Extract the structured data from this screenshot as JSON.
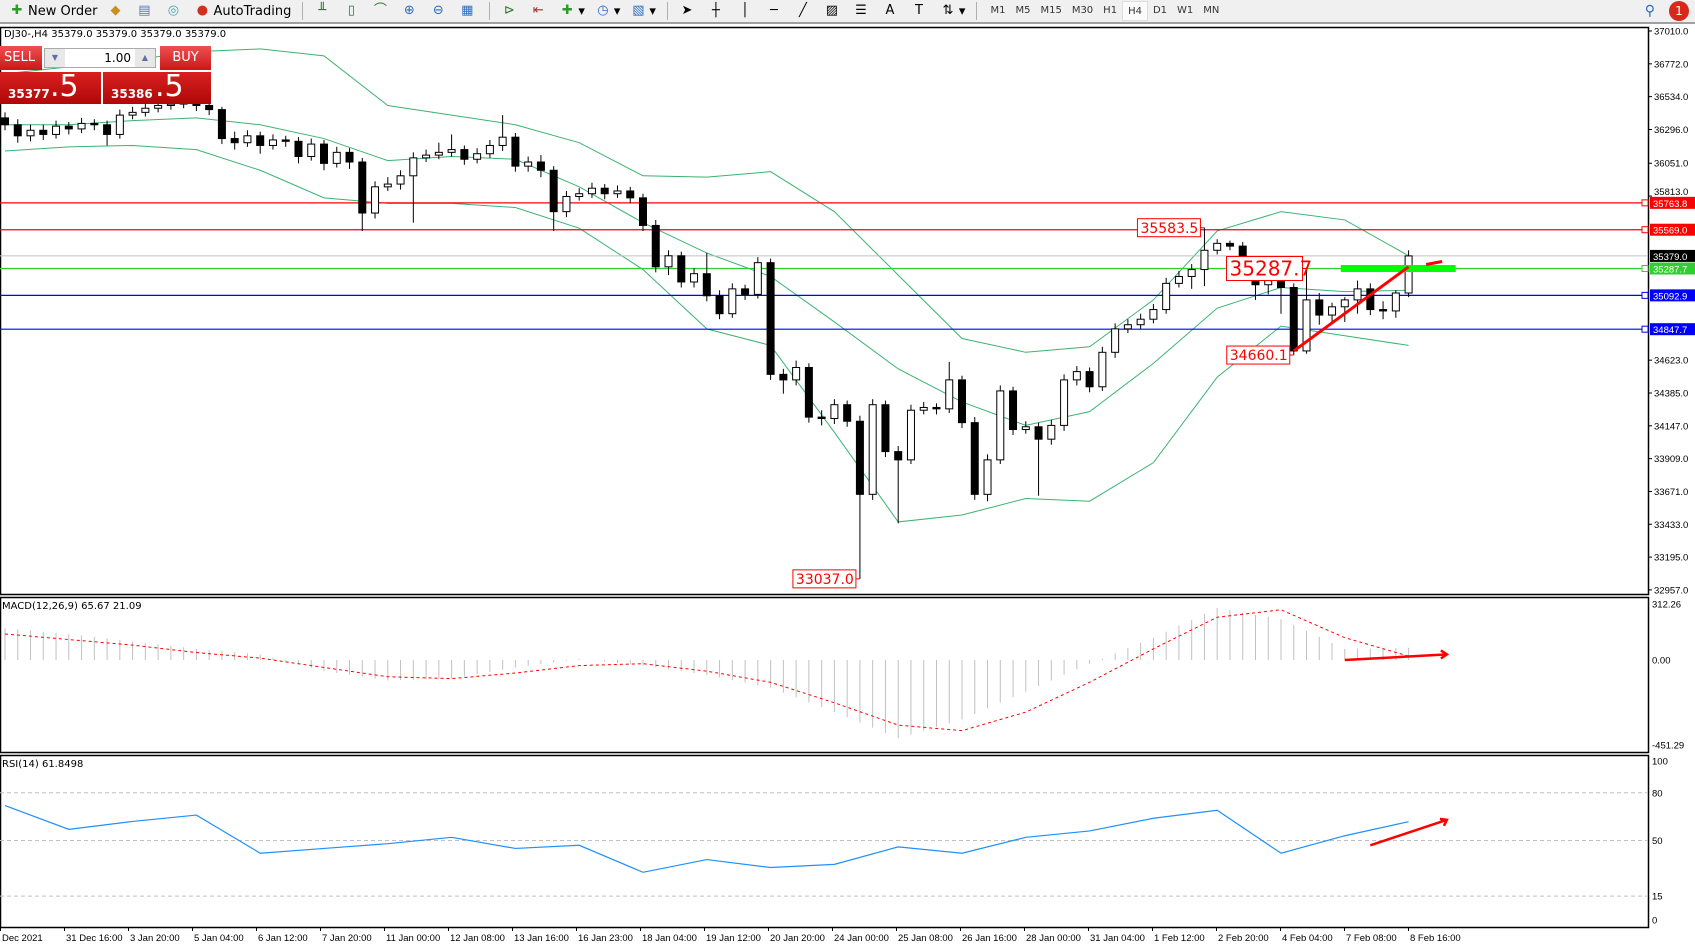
{
  "toolbar": {
    "items": [
      {
        "label": "New Order",
        "icon": "new-order-icon"
      },
      {
        "label": "",
        "icon": "metaeditor-icon"
      },
      {
        "label": "",
        "icon": "trading-terminal-icon"
      },
      {
        "label": "",
        "icon": "signals-icon"
      },
      {
        "label": "AutoTrading",
        "icon": "autotrading-icon"
      }
    ],
    "chart_tools": [
      "bar-chart-icon",
      "candlestick-icon",
      "line-chart-icon",
      "zoom-in-icon",
      "zoom-out-icon",
      "tile-windows-icon",
      "autoscroll-icon",
      "chart-shift-icon",
      "indicators-icon",
      "periods-icon",
      "templates-icon",
      "cursor-icon",
      "crosshair-icon",
      "vertical-line-icon",
      "horizontal-line-icon",
      "trendline-icon",
      "fibonacci-icon",
      "fibo-fan-icon",
      "text-icon",
      "text-label-icon",
      "arrows-icon"
    ],
    "timeframes": [
      "M1",
      "M5",
      "M15",
      "M30",
      "H1",
      "H4",
      "D1",
      "W1",
      "MN"
    ],
    "active_timeframe": "H4",
    "notification_count": "1"
  },
  "chart": {
    "symbol_line": "DJ30-,H4  35379.0 35379.0 35379.0 35379.0",
    "trade_panel": {
      "sell": "SELL",
      "buy": "BUY",
      "lot": "1.00",
      "sell_price_small": "35377",
      "sell_price_big": ".5",
      "buy_price_small": "35386",
      "buy_price_big": ".5"
    },
    "price_axis": [
      "37010.0",
      "36772.0",
      "36534.0",
      "36296.0",
      "36051.0",
      "35813.0",
      "34623.0",
      "34385.0",
      "34147.0",
      "33909.0",
      "33671.0",
      "33433.0",
      "33195.0",
      "32957.0"
    ],
    "price_range": [
      32957,
      37010
    ],
    "horizontal_lines": [
      {
        "price": 35763.8,
        "label": "35763.8",
        "color": "#ff0000"
      },
      {
        "price": 35569.0,
        "label": "35569.0",
        "color": "#ff0000"
      },
      {
        "price": 35287.7,
        "label": "35287.7",
        "color": "#32cd32"
      },
      {
        "price": 35092.9,
        "label": "35092.9",
        "color": "#0000ff"
      },
      {
        "price": 34847.7,
        "label": "34847.7",
        "color": "#0000ff"
      }
    ],
    "current_price": {
      "price": 35379.0,
      "label": "35379.0",
      "color": "#000000"
    },
    "annotations": [
      {
        "text": "35583.5",
        "bar": 94,
        "price": 35583.5,
        "size": "normal"
      },
      {
        "text": "35287.7",
        "bar": 102,
        "price": 35287.7,
        "size": "large"
      },
      {
        "text": "34660.1",
        "bar": 101,
        "price": 34660.1,
        "size": "normal"
      },
      {
        "text": "33037.0",
        "bar": 67,
        "price": 33037.0,
        "size": "normal"
      }
    ],
    "green_zone": {
      "price": 35287.7,
      "from_bar": 105,
      "to_bar": 114,
      "color": "#00ff00"
    },
    "trendline": {
      "from": [
        101,
        34690
      ],
      "to": [
        110,
        35300
      ],
      "color": "#ff0000"
    },
    "time_axis": [
      "Dec 2021",
      "31 Dec 16:00",
      "3 Jan 20:00",
      "5 Jan 04:00",
      "6 Jan 12:00",
      "7 Jan 20:00",
      "11 Jan 00:00",
      "12 Jan 08:00",
      "13 Jan 16:00",
      "16 Jan 23:00",
      "18 Jan 04:00",
      "19 Jan 12:00",
      "20 Jan 20:00",
      "24 Jan 00:00",
      "25 Jan 08:00",
      "26 Jan 16:00",
      "28 Jan 00:00",
      "31 Jan 04:00",
      "1 Feb 12:00",
      "2 Feb 20:00",
      "4 Feb 04:00",
      "7 Feb 08:00",
      "8 Feb 16:00"
    ]
  },
  "chart_data": {
    "type": "candlestick",
    "ohlc": [
      [
        36380,
        36420,
        36290,
        36330
      ],
      [
        36330,
        36370,
        36200,
        36250
      ],
      [
        36250,
        36330,
        36210,
        36290
      ],
      [
        36290,
        36330,
        36220,
        36260
      ],
      [
        36260,
        36360,
        36230,
        36320
      ],
      [
        36320,
        36350,
        36260,
        36300
      ],
      [
        36300,
        36380,
        36270,
        36340
      ],
      [
        36340,
        36370,
        36290,
        36330
      ],
      [
        36330,
        36360,
        36180,
        36260
      ],
      [
        36260,
        36440,
        36230,
        36400
      ],
      [
        36400,
        36460,
        36370,
        36420
      ],
      [
        36420,
        36490,
        36390,
        36450
      ],
      [
        36450,
        36510,
        36420,
        36470
      ],
      [
        36470,
        36520,
        36440,
        36480
      ],
      [
        36480,
        36540,
        36450,
        36500
      ],
      [
        36500,
        36530,
        36430,
        36470
      ],
      [
        36470,
        36490,
        36400,
        36440
      ],
      [
        36440,
        36460,
        36190,
        36230
      ],
      [
        36230,
        36280,
        36150,
        36200
      ],
      [
        36200,
        36290,
        36170,
        36250
      ],
      [
        36250,
        36280,
        36120,
        36180
      ],
      [
        36180,
        36260,
        36150,
        36220
      ],
      [
        36220,
        36250,
        36170,
        36210
      ],
      [
        36210,
        36240,
        36050,
        36100
      ],
      [
        36100,
        36230,
        36070,
        36190
      ],
      [
        36190,
        36220,
        36000,
        36050
      ],
      [
        36050,
        36170,
        36020,
        36130
      ],
      [
        36130,
        36160,
        36010,
        36060
      ],
      [
        36060,
        36090,
        35560,
        35690
      ],
      [
        35690,
        35920,
        35650,
        35880
      ],
      [
        35880,
        35950,
        35850,
        35900
      ],
      [
        35900,
        36000,
        35860,
        35960
      ],
      [
        35960,
        36130,
        35620,
        36090
      ],
      [
        36090,
        36150,
        36060,
        36110
      ],
      [
        36110,
        36200,
        36080,
        36130
      ],
      [
        36130,
        36260,
        36100,
        36150
      ],
      [
        36150,
        36180,
        36040,
        36080
      ],
      [
        36080,
        36160,
        36050,
        36120
      ],
      [
        36120,
        36220,
        36090,
        36180
      ],
      [
        36180,
        36400,
        36140,
        36240
      ],
      [
        36240,
        36270,
        35990,
        36030
      ],
      [
        36030,
        36100,
        35990,
        36060
      ],
      [
        36060,
        36110,
        35950,
        36000
      ],
      [
        36000,
        36030,
        35560,
        35700
      ],
      [
        35700,
        35850,
        35660,
        35810
      ],
      [
        35810,
        35870,
        35780,
        35830
      ],
      [
        35830,
        35910,
        35800,
        35870
      ],
      [
        35870,
        35900,
        35790,
        35830
      ],
      [
        35830,
        35890,
        35800,
        35850
      ],
      [
        35850,
        35880,
        35760,
        35800
      ],
      [
        35800,
        35830,
        35560,
        35600
      ],
      [
        35600,
        35640,
        35260,
        35300
      ],
      [
        35300,
        35420,
        35240,
        35380
      ],
      [
        35380,
        35410,
        35150,
        35190
      ],
      [
        35190,
        35290,
        35150,
        35250
      ],
      [
        35250,
        35400,
        35050,
        35090
      ],
      [
        35090,
        35130,
        34920,
        34960
      ],
      [
        34960,
        35180,
        34930,
        35140
      ],
      [
        35140,
        35170,
        35060,
        35100
      ],
      [
        35100,
        35370,
        35070,
        35330
      ],
      [
        35330,
        35360,
        34480,
        34520
      ],
      [
        34520,
        34560,
        34380,
        34480
      ],
      [
        34480,
        34620,
        34440,
        34570
      ],
      [
        34570,
        34600,
        34170,
        34210
      ],
      [
        34210,
        34260,
        34150,
        34200
      ],
      [
        34200,
        34340,
        34160,
        34300
      ],
      [
        34300,
        34330,
        34140,
        34180
      ],
      [
        34180,
        34220,
        33037,
        33650
      ],
      [
        33650,
        34340,
        33610,
        34300
      ],
      [
        34300,
        34330,
        33920,
        33960
      ],
      [
        33960,
        34000,
        33440,
        33900
      ],
      [
        33900,
        34300,
        33870,
        34260
      ],
      [
        34260,
        34320,
        34230,
        34280
      ],
      [
        34280,
        34310,
        34230,
        34270
      ],
      [
        34270,
        34610,
        34240,
        34480
      ],
      [
        34480,
        34510,
        34130,
        34170
      ],
      [
        34170,
        34210,
        33610,
        33650
      ],
      [
        33650,
        33940,
        33600,
        33900
      ],
      [
        33900,
        34440,
        33870,
        34400
      ],
      [
        34400,
        34430,
        34080,
        34120
      ],
      [
        34120,
        34180,
        34090,
        34140
      ],
      [
        34140,
        34170,
        33640,
        34050
      ],
      [
        34050,
        34190,
        34010,
        34150
      ],
      [
        34150,
        34520,
        34110,
        34480
      ],
      [
        34480,
        34580,
        34440,
        34540
      ],
      [
        34540,
        34570,
        34390,
        34430
      ],
      [
        34430,
        34720,
        34400,
        34680
      ],
      [
        34680,
        34890,
        34640,
        34850
      ],
      [
        34850,
        34920,
        34820,
        34880
      ],
      [
        34880,
        34960,
        34850,
        34920
      ],
      [
        34920,
        35030,
        34890,
        34990
      ],
      [
        34990,
        35220,
        34960,
        35180
      ],
      [
        35180,
        35270,
        35150,
        35230
      ],
      [
        35230,
        35320,
        35140,
        35280
      ],
      [
        35280,
        35583.5,
        35160,
        35420
      ],
      [
        35420,
        35500,
        35390,
        35470
      ],
      [
        35470,
        35490,
        35420,
        35450
      ],
      [
        35450,
        35480,
        35220,
        35260
      ],
      [
        35260,
        35290,
        35060,
        35170
      ],
      [
        35170,
        35240,
        35100,
        35200
      ],
      [
        35200,
        35290,
        34960,
        35150
      ],
      [
        35150,
        35180,
        34660.1,
        34690
      ],
      [
        34690,
        35287.7,
        34670,
        35060
      ],
      [
        35060,
        35110,
        34880,
        34950
      ],
      [
        34950,
        35040,
        34900,
        35010
      ],
      [
        35010,
        35080,
        34900,
        35060
      ],
      [
        35060,
        35200,
        34960,
        35140
      ],
      [
        35140,
        35180,
        34950,
        34990
      ],
      [
        34990,
        35050,
        34920,
        34980
      ],
      [
        34980,
        35130,
        34930,
        35110
      ],
      [
        35110,
        35420,
        35080,
        35379
      ]
    ],
    "bollinger": {
      "color": "#3cb371",
      "index": [
        0,
        5,
        10,
        15,
        20,
        25,
        30,
        35,
        40,
        45,
        50,
        55,
        60,
        65,
        70,
        75,
        80,
        85,
        90,
        95,
        100,
        105,
        110
      ],
      "upper": [
        36700,
        36750,
        36800,
        36860,
        36880,
        36830,
        36470,
        36400,
        36330,
        36200,
        35960,
        35950,
        35990,
        35700,
        35240,
        34780,
        34680,
        34720,
        35060,
        35560,
        35700,
        35640,
        35380
      ],
      "middle": [
        36330,
        36330,
        36360,
        36380,
        36330,
        36230,
        36070,
        36100,
        36080,
        35880,
        35620,
        35400,
        35230,
        34900,
        34560,
        34320,
        34150,
        34250,
        34600,
        35000,
        35150,
        35120,
        35130
      ],
      "lower": [
        36140,
        36170,
        36180,
        36150,
        36000,
        35800,
        35760,
        35760,
        35730,
        35580,
        35280,
        34850,
        34730,
        34100,
        33450,
        33500,
        33620,
        33600,
        33880,
        34500,
        34870,
        34800,
        34730
      ]
    },
    "macd": {
      "label": "MACD(12,26,9) 65.67 21.09",
      "axis": [
        "312.26",
        "0.00",
        "-451.29"
      ],
      "range": [
        -451.29,
        312.26
      ],
      "index": [
        0,
        5,
        10,
        15,
        20,
        25,
        30,
        35,
        40,
        45,
        50,
        55,
        60,
        65,
        70,
        75,
        80,
        85,
        90,
        95,
        100,
        105,
        110
      ],
      "histogram": [
        170,
        140,
        100,
        60,
        30,
        -60,
        -110,
        -100,
        -40,
        5,
        -30,
        -80,
        -150,
        -280,
        -420,
        -320,
        -170,
        -20,
        120,
        280,
        220,
        60,
        65.67
      ],
      "signal": [
        140,
        110,
        80,
        40,
        10,
        -40,
        -90,
        -100,
        -70,
        -30,
        -20,
        -60,
        -120,
        -230,
        -350,
        -380,
        -280,
        -120,
        60,
        230,
        270,
        120,
        21.09
      ],
      "histogram_color": "#c0c0c0",
      "signal_color": "#ff0000"
    },
    "rsi": {
      "label": "RSI(14) 61.8498",
      "axis": [
        "100",
        "80",
        "50",
        "15",
        "0"
      ],
      "levels": [
        80,
        50,
        15
      ],
      "index": [
        0,
        5,
        10,
        15,
        20,
        25,
        30,
        35,
        40,
        45,
        50,
        55,
        60,
        65,
        70,
        75,
        80,
        85,
        90,
        95,
        100,
        105,
        110
      ],
      "values": [
        72,
        57,
        62,
        66,
        42,
        45,
        48,
        52,
        45,
        47,
        30,
        38,
        33,
        35,
        46,
        42,
        52,
        56,
        64,
        69,
        42,
        53,
        61.8498
      ],
      "color": "#1e90ff"
    }
  }
}
